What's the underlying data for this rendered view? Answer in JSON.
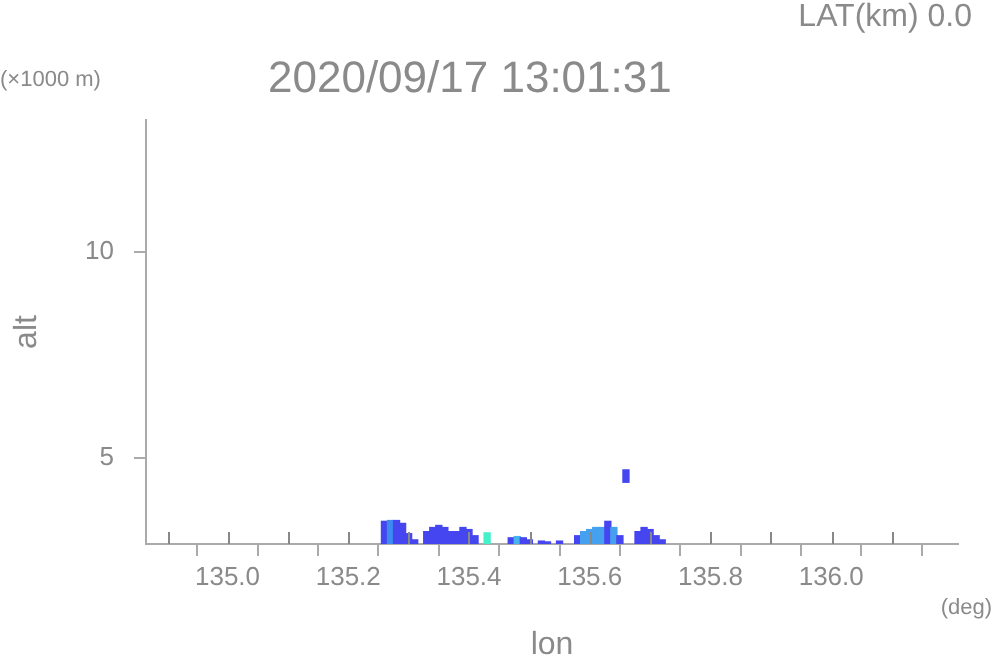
{
  "chart_data": {
    "type": "bar",
    "title": "2020/09/17 13:01:31",
    "subtitle": "LAT(km) 0.0",
    "xlabel": "lon",
    "ylabel": "alt",
    "annotations": [
      "(×1000 m)",
      "(deg)"
    ],
    "x": [
      135.26,
      135.27,
      135.28,
      135.29,
      135.3,
      135.31,
      135.33,
      135.34,
      135.35,
      135.36,
      135.37,
      135.38,
      135.39,
      135.4,
      135.41,
      135.43,
      135.47,
      135.48,
      135.49,
      135.5,
      135.52,
      135.53,
      135.55,
      135.58,
      135.59,
      135.6,
      135.61,
      135.62,
      135.63,
      135.64,
      135.65,
      135.66,
      135.68,
      135.69,
      135.7,
      135.71,
      135.72
    ],
    "base": [
      2.9,
      2.9,
      2.9,
      2.9,
      2.9,
      2.9,
      2.9,
      2.9,
      2.9,
      2.9,
      2.9,
      2.9,
      2.9,
      2.9,
      2.9,
      2.9,
      2.9,
      2.9,
      2.9,
      2.9,
      2.9,
      2.9,
      2.9,
      2.9,
      2.9,
      2.9,
      2.9,
      2.9,
      2.9,
      2.9,
      2.9,
      4.4,
      2.9,
      2.9,
      2.9,
      2.9,
      2.9
    ],
    "values": [
      0.55,
      0.57,
      0.57,
      0.5,
      0.25,
      0.1,
      0.3,
      0.4,
      0.45,
      0.4,
      0.3,
      0.3,
      0.4,
      0.35,
      0.2,
      0.27,
      0.15,
      0.18,
      0.15,
      0.1,
      0.07,
      0.05,
      0.07,
      0.2,
      0.3,
      0.35,
      0.4,
      0.4,
      0.55,
      0.4,
      0.2,
      0.3,
      0.3,
      0.4,
      0.35,
      0.2,
      0.1
    ],
    "colors": [
      "#4646f0",
      "#3c8cf0",
      "#4646f0",
      "#4646f0",
      "#4646f0",
      "#4646f0",
      "#4646f0",
      "#4646f0",
      "#4646f0",
      "#4646f0",
      "#4646f0",
      "#4646f0",
      "#4646f0",
      "#4646f0",
      "#4646f0",
      "#46f0c8",
      "#4646f0",
      "#46b4f0",
      "#4646f0",
      "#4646f0",
      "#4646f0",
      "#4646f0",
      "#4646f0",
      "#4646f0",
      "#46a0f0",
      "#46a0f0",
      "#46a0f0",
      "#46a0f0",
      "#4646f0",
      "#46a0f0",
      "#4646f0",
      "#4646f0",
      "#4646f0",
      "#4646f0",
      "#4646f0",
      "#4646f0",
      "#4646f0"
    ],
    "xlim": [
      134.865,
      136.21
    ],
    "ylim": [
      2.9,
      13.2
    ],
    "xticks": [
      {
        "value": 134.9,
        "label": null
      },
      {
        "value": 135,
        "label": "135.0"
      },
      {
        "value": 135.1,
        "label": null
      },
      {
        "value": 135.2,
        "label": "135.2"
      },
      {
        "value": 135.3,
        "label": null
      },
      {
        "value": 135.4,
        "label": "135.4"
      },
      {
        "value": 135.5,
        "label": null
      },
      {
        "value": 135.6,
        "label": "135.6"
      },
      {
        "value": 135.7,
        "label": null
      },
      {
        "value": 135.8,
        "label": "135.8"
      },
      {
        "value": 135.9,
        "label": null
      },
      {
        "value": 136,
        "label": "136.0"
      },
      {
        "value": 136.1,
        "label": null
      }
    ],
    "yticks": [
      5,
      10
    ],
    "grid": false,
    "legend": false
  }
}
